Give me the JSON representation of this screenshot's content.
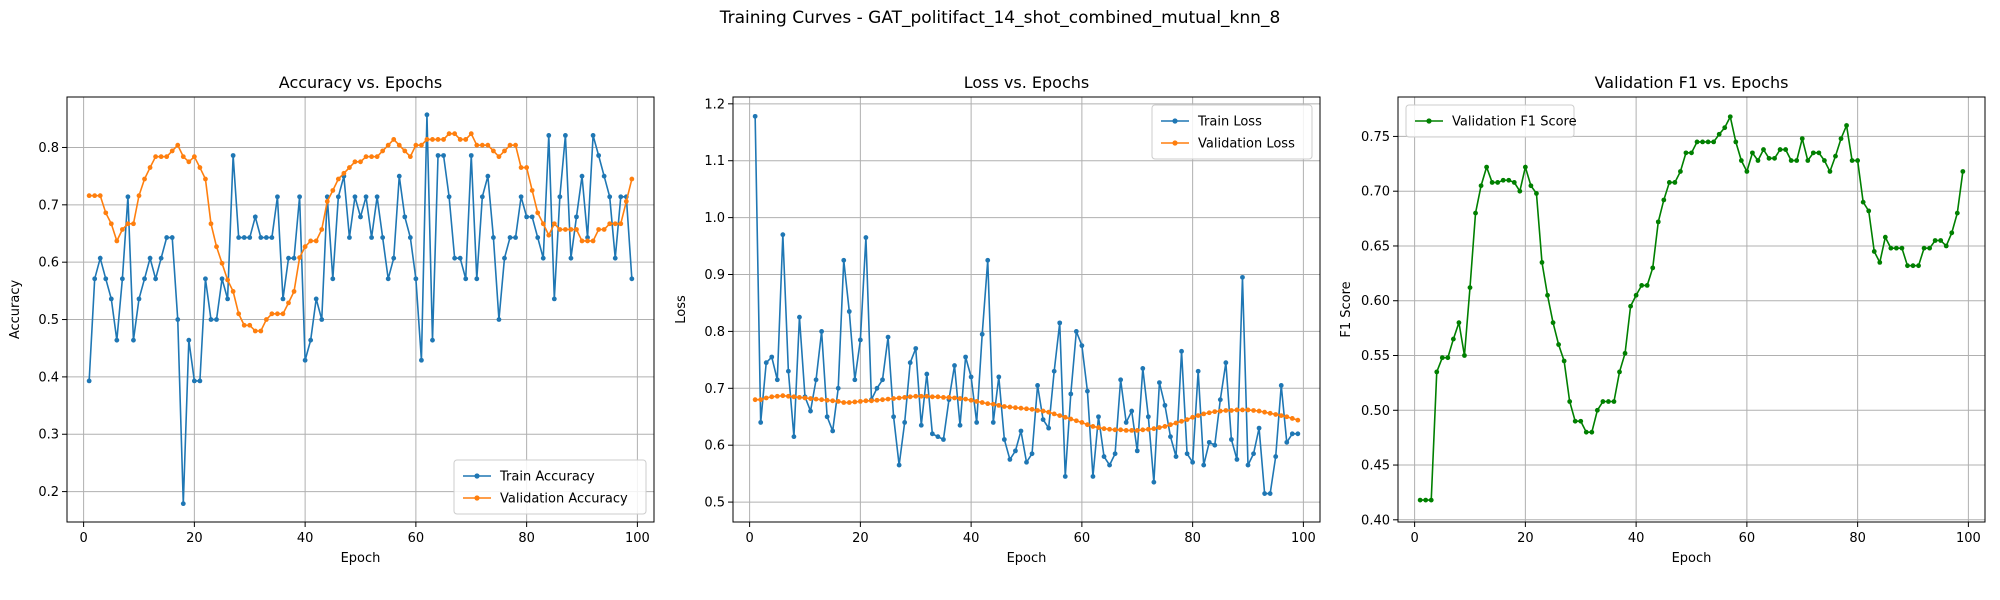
{
  "suptitle": "Training Curves - GAT_politifact_14_shot_combined_mutual_knn_8",
  "chart_data": [
    {
      "type": "line",
      "title": "Accuracy vs. Epochs",
      "xlabel": "Epoch",
      "ylabel": "Accuracy",
      "xlim": [
        -3,
        103
      ],
      "ylim": [
        0.147,
        0.888
      ],
      "xticks": [
        0,
        20,
        40,
        60,
        80,
        100
      ],
      "yticks": [
        0.2,
        0.3,
        0.4,
        0.5,
        0.6,
        0.7,
        0.8
      ],
      "tick_decimals": 1,
      "grid": true,
      "legend": "lower right",
      "series": [
        {
          "name": "Train Accuracy",
          "color": "#1f77b4",
          "x": [
            1,
            2,
            3,
            4,
            5,
            6,
            7,
            8,
            9,
            10,
            11,
            12,
            13,
            14,
            15,
            16,
            17,
            18,
            19,
            20,
            21,
            22,
            23,
            24,
            25,
            26,
            27,
            28,
            29,
            30,
            31,
            32,
            33,
            34,
            35,
            36,
            37,
            38,
            39,
            40,
            41,
            42,
            43,
            44,
            45,
            46,
            47,
            48,
            49,
            50,
            51,
            52,
            53,
            54,
            55,
            56,
            57,
            58,
            59,
            60,
            61,
            62,
            63,
            64,
            65,
            66,
            67,
            68,
            69,
            70,
            71,
            72,
            73,
            74,
            75,
            76,
            77,
            78,
            79,
            80,
            81,
            82,
            83,
            84,
            85,
            86,
            87,
            88,
            89,
            90,
            91,
            92,
            93,
            94,
            95,
            96,
            97,
            98,
            99
          ],
          "y": [
            0.393,
            0.571,
            0.607,
            0.571,
            0.536,
            0.464,
            0.571,
            0.714,
            0.464,
            0.536,
            0.571,
            0.607,
            0.571,
            0.607,
            0.643,
            0.643,
            0.5,
            0.179,
            0.464,
            0.393,
            0.393,
            0.571,
            0.5,
            0.5,
            0.571,
            0.536,
            0.786,
            0.643,
            0.643,
            0.643,
            0.679,
            0.643,
            0.643,
            0.643,
            0.714,
            0.536,
            0.607,
            0.607,
            0.714,
            0.429,
            0.464,
            0.536,
            0.5,
            0.714,
            0.571,
            0.714,
            0.75,
            0.643,
            0.714,
            0.679,
            0.714,
            0.643,
            0.714,
            0.643,
            0.571,
            0.607,
            0.75,
            0.679,
            0.643,
            0.571,
            0.429,
            0.857,
            0.464,
            0.786,
            0.786,
            0.714,
            0.607,
            0.607,
            0.571,
            0.786,
            0.571,
            0.714,
            0.75,
            0.643,
            0.5,
            0.607,
            0.643,
            0.643,
            0.714,
            0.679,
            0.679,
            0.643,
            0.607,
            0.821,
            0.536,
            0.714,
            0.821,
            0.607,
            0.679,
            0.75,
            0.643,
            0.821,
            0.786,
            0.75,
            0.714,
            0.607,
            0.714,
            0.714,
            0.571
          ]
        },
        {
          "name": "Validation Accuracy",
          "color": "#ff7f0e",
          "x": [
            1,
            2,
            3,
            4,
            5,
            6,
            7,
            8,
            9,
            10,
            11,
            12,
            13,
            14,
            15,
            16,
            17,
            18,
            19,
            20,
            21,
            22,
            23,
            24,
            25,
            26,
            27,
            28,
            29,
            30,
            31,
            32,
            33,
            34,
            35,
            36,
            37,
            38,
            39,
            40,
            41,
            42,
            43,
            44,
            45,
            46,
            47,
            48,
            49,
            50,
            51,
            52,
            53,
            54,
            55,
            56,
            57,
            58,
            59,
            60,
            61,
            62,
            63,
            64,
            65,
            66,
            67,
            68,
            69,
            70,
            71,
            72,
            73,
            74,
            75,
            76,
            77,
            78,
            79,
            80,
            81,
            82,
            83,
            84,
            85,
            86,
            87,
            88,
            89,
            90,
            91,
            92,
            93,
            94,
            95,
            96,
            97,
            98,
            99
          ],
          "y": [
            0.716,
            0.716,
            0.716,
            0.686,
            0.667,
            0.637,
            0.657,
            0.667,
            0.667,
            0.716,
            0.745,
            0.765,
            0.784,
            0.784,
            0.784,
            0.794,
            0.804,
            0.784,
            0.775,
            0.784,
            0.765,
            0.745,
            0.667,
            0.627,
            0.598,
            0.569,
            0.549,
            0.51,
            0.49,
            0.49,
            0.48,
            0.48,
            0.5,
            0.51,
            0.51,
            0.51,
            0.529,
            0.549,
            0.608,
            0.627,
            0.637,
            0.637,
            0.657,
            0.706,
            0.725,
            0.745,
            0.755,
            0.765,
            0.775,
            0.775,
            0.784,
            0.784,
            0.784,
            0.794,
            0.804,
            0.814,
            0.804,
            0.794,
            0.784,
            0.804,
            0.804,
            0.814,
            0.814,
            0.814,
            0.814,
            0.824,
            0.824,
            0.814,
            0.814,
            0.824,
            0.804,
            0.804,
            0.804,
            0.794,
            0.784,
            0.794,
            0.804,
            0.804,
            0.765,
            0.765,
            0.725,
            0.686,
            0.667,
            0.647,
            0.667,
            0.657,
            0.657,
            0.657,
            0.657,
            0.637,
            0.637,
            0.637,
            0.657,
            0.657,
            0.667,
            0.667,
            0.667,
            0.706,
            0.745
          ]
        }
      ]
    },
    {
      "type": "line",
      "title": "Loss vs. Epochs",
      "xlabel": "Epoch",
      "ylabel": "Loss",
      "xlim": [
        -3,
        103
      ],
      "ylim": [
        0.465,
        1.212
      ],
      "xticks": [
        0,
        20,
        40,
        60,
        80,
        100
      ],
      "yticks": [
        0.5,
        0.6,
        0.7,
        0.8,
        0.9,
        1.0,
        1.1,
        1.2
      ],
      "tick_decimals": 1,
      "grid": true,
      "legend": "upper right",
      "series": [
        {
          "name": "Train Loss",
          "color": "#1f77b4",
          "x": [
            1,
            2,
            3,
            4,
            5,
            6,
            7,
            8,
            9,
            10,
            11,
            12,
            13,
            14,
            15,
            16,
            17,
            18,
            19,
            20,
            21,
            22,
            23,
            24,
            25,
            26,
            27,
            28,
            29,
            30,
            31,
            32,
            33,
            34,
            35,
            36,
            37,
            38,
            39,
            40,
            41,
            42,
            43,
            44,
            45,
            46,
            47,
            48,
            49,
            50,
            51,
            52,
            53,
            54,
            55,
            56,
            57,
            58,
            59,
            60,
            61,
            62,
            63,
            64,
            65,
            66,
            67,
            68,
            69,
            70,
            71,
            72,
            73,
            74,
            75,
            76,
            77,
            78,
            79,
            80,
            81,
            82,
            83,
            84,
            85,
            86,
            87,
            88,
            89,
            90,
            91,
            92,
            93,
            94,
            95,
            96,
            97,
            98,
            99
          ],
          "y": [
            1.178,
            0.64,
            0.745,
            0.755,
            0.715,
            0.97,
            0.73,
            0.615,
            0.825,
            0.685,
            0.66,
            0.715,
            0.8,
            0.65,
            0.625,
            0.7,
            0.925,
            0.835,
            0.715,
            0.785,
            0.965,
            0.68,
            0.7,
            0.715,
            0.79,
            0.65,
            0.565,
            0.64,
            0.745,
            0.77,
            0.635,
            0.725,
            0.62,
            0.615,
            0.61,
            0.68,
            0.74,
            0.635,
            0.755,
            0.72,
            0.64,
            0.795,
            0.925,
            0.64,
            0.72,
            0.61,
            0.575,
            0.59,
            0.625,
            0.57,
            0.585,
            0.705,
            0.645,
            0.63,
            0.73,
            0.815,
            0.545,
            0.69,
            0.8,
            0.775,
            0.695,
            0.545,
            0.65,
            0.58,
            0.565,
            0.585,
            0.715,
            0.64,
            0.66,
            0.59,
            0.735,
            0.65,
            0.535,
            0.71,
            0.67,
            0.615,
            0.58,
            0.765,
            0.585,
            0.57,
            0.73,
            0.565,
            0.605,
            0.6,
            0.68,
            0.745,
            0.61,
            0.575,
            0.895,
            0.565,
            0.585,
            0.63,
            0.515,
            0.515,
            0.58,
            0.705,
            0.605,
            0.62,
            0.62
          ]
        },
        {
          "name": "Validation Loss",
          "color": "#ff7f0e",
          "x": [
            1,
            2,
            3,
            4,
            5,
            6,
            7,
            8,
            9,
            10,
            11,
            12,
            13,
            14,
            15,
            16,
            17,
            18,
            19,
            20,
            21,
            22,
            23,
            24,
            25,
            26,
            27,
            28,
            29,
            30,
            31,
            32,
            33,
            34,
            35,
            36,
            37,
            38,
            39,
            40,
            41,
            42,
            43,
            44,
            45,
            46,
            47,
            48,
            49,
            50,
            51,
            52,
            53,
            54,
            55,
            56,
            57,
            58,
            59,
            60,
            61,
            62,
            63,
            64,
            65,
            66,
            67,
            68,
            69,
            70,
            71,
            72,
            73,
            74,
            75,
            76,
            77,
            78,
            79,
            80,
            81,
            82,
            83,
            84,
            85,
            86,
            87,
            88,
            89,
            90,
            91,
            92,
            93,
            94,
            95,
            96,
            97,
            98,
            99
          ],
          "y": [
            0.68,
            0.68,
            0.683,
            0.685,
            0.686,
            0.687,
            0.686,
            0.685,
            0.684,
            0.683,
            0.682,
            0.681,
            0.68,
            0.679,
            0.678,
            0.677,
            0.675,
            0.675,
            0.676,
            0.677,
            0.678,
            0.678,
            0.679,
            0.68,
            0.681,
            0.682,
            0.683,
            0.684,
            0.685,
            0.686,
            0.686,
            0.686,
            0.685,
            0.685,
            0.684,
            0.684,
            0.683,
            0.682,
            0.681,
            0.679,
            0.677,
            0.675,
            0.673,
            0.672,
            0.67,
            0.668,
            0.667,
            0.666,
            0.665,
            0.664,
            0.663,
            0.661,
            0.66,
            0.658,
            0.655,
            0.652,
            0.649,
            0.646,
            0.643,
            0.64,
            0.636,
            0.633,
            0.631,
            0.629,
            0.628,
            0.627,
            0.627,
            0.626,
            0.626,
            0.626,
            0.627,
            0.628,
            0.629,
            0.631,
            0.633,
            0.636,
            0.639,
            0.642,
            0.645,
            0.649,
            0.652,
            0.655,
            0.657,
            0.659,
            0.66,
            0.661,
            0.661,
            0.662,
            0.662,
            0.662,
            0.661,
            0.66,
            0.658,
            0.656,
            0.654,
            0.652,
            0.65,
            0.647,
            0.644
          ]
        }
      ]
    },
    {
      "type": "line",
      "title": "Validation F1 vs. Epochs",
      "xlabel": "Epoch",
      "ylabel": "F1 Score",
      "xlim": [
        -3,
        103
      ],
      "ylim": [
        0.398,
        0.786
      ],
      "xticks": [
        0,
        20,
        40,
        60,
        80,
        100
      ],
      "yticks": [
        0.4,
        0.45,
        0.5,
        0.55,
        0.6,
        0.65,
        0.7,
        0.75
      ],
      "tick_decimals": 2,
      "grid": true,
      "legend": "upper left",
      "series": [
        {
          "name": "Validation F1 Score",
          "color": "#008000",
          "x": [
            1,
            2,
            3,
            4,
            5,
            6,
            7,
            8,
            9,
            10,
            11,
            12,
            13,
            14,
            15,
            16,
            17,
            18,
            19,
            20,
            21,
            22,
            23,
            24,
            25,
            26,
            27,
            28,
            29,
            30,
            31,
            32,
            33,
            34,
            35,
            36,
            37,
            38,
            39,
            40,
            41,
            42,
            43,
            44,
            45,
            46,
            47,
            48,
            49,
            50,
            51,
            52,
            53,
            54,
            55,
            56,
            57,
            58,
            59,
            60,
            61,
            62,
            63,
            64,
            65,
            66,
            67,
            68,
            69,
            70,
            71,
            72,
            73,
            74,
            75,
            76,
            77,
            78,
            79,
            80,
            81,
            82,
            83,
            84,
            85,
            86,
            87,
            88,
            89,
            90,
            91,
            92,
            93,
            94,
            95,
            96,
            97,
            98,
            99
          ],
          "y": [
            0.418,
            0.418,
            0.418,
            0.535,
            0.548,
            0.548,
            0.565,
            0.58,
            0.55,
            0.612,
            0.68,
            0.705,
            0.722,
            0.708,
            0.708,
            0.71,
            0.71,
            0.708,
            0.7,
            0.722,
            0.705,
            0.698,
            0.635,
            0.605,
            0.58,
            0.56,
            0.545,
            0.508,
            0.49,
            0.49,
            0.48,
            0.48,
            0.5,
            0.508,
            0.508,
            0.508,
            0.535,
            0.552,
            0.595,
            0.605,
            0.614,
            0.614,
            0.63,
            0.672,
            0.692,
            0.708,
            0.708,
            0.718,
            0.735,
            0.735,
            0.745,
            0.745,
            0.745,
            0.745,
            0.752,
            0.758,
            0.768,
            0.745,
            0.728,
            0.718,
            0.735,
            0.728,
            0.738,
            0.73,
            0.73,
            0.738,
            0.738,
            0.728,
            0.728,
            0.748,
            0.728,
            0.735,
            0.735,
            0.728,
            0.718,
            0.732,
            0.748,
            0.76,
            0.728,
            0.728,
            0.69,
            0.682,
            0.645,
            0.635,
            0.658,
            0.648,
            0.648,
            0.648,
            0.632,
            0.632,
            0.632,
            0.648,
            0.648,
            0.655,
            0.655,
            0.65,
            0.662,
            0.68,
            0.718
          ]
        }
      ]
    }
  ]
}
